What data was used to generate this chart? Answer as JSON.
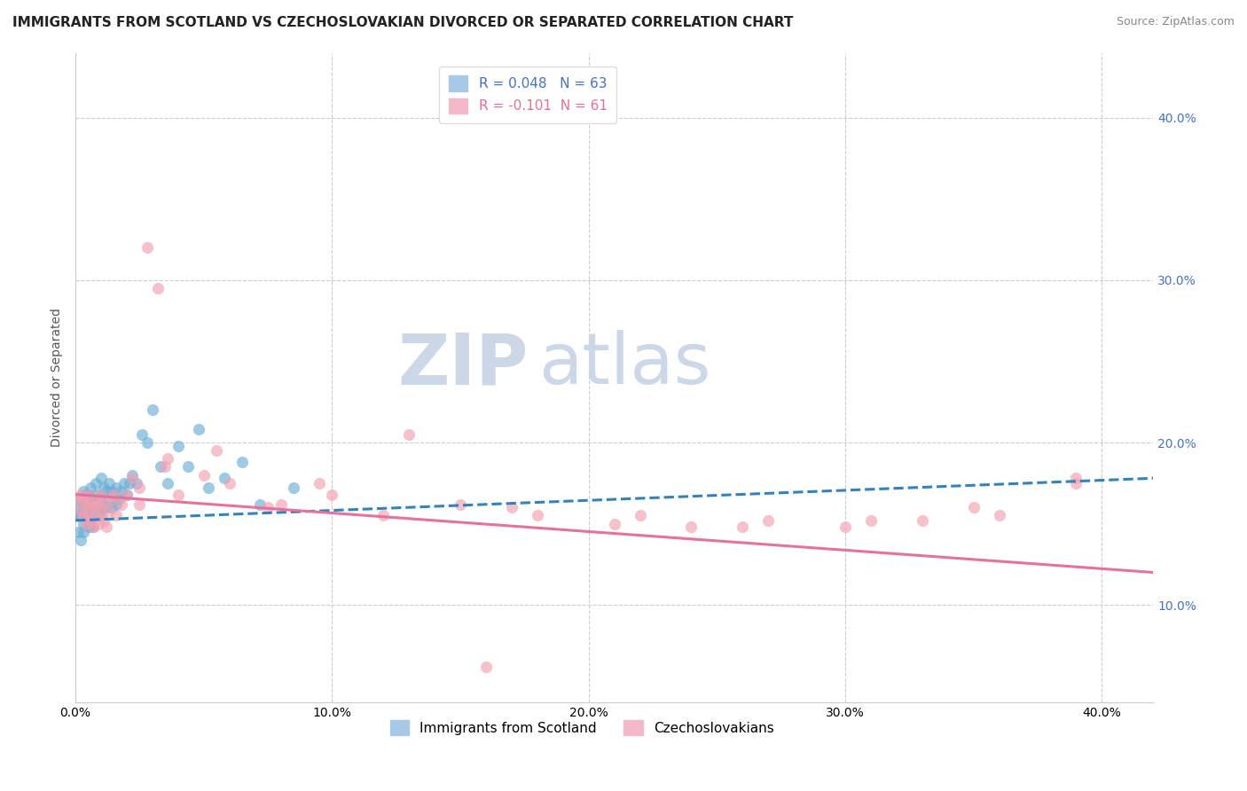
{
  "title": "IMMIGRANTS FROM SCOTLAND VS CZECHOSLOVAKIAN DIVORCED OR SEPARATED CORRELATION CHART",
  "source": "Source: ZipAtlas.com",
  "ylabel": "Divorced or Separated",
  "xlim": [
    0.0,
    0.42
  ],
  "ylim": [
    0.0,
    0.44
  ],
  "plot_ylim": [
    0.04,
    0.44
  ],
  "xtick_labels": [
    "0.0%",
    "10.0%",
    "20.0%",
    "30.0%",
    "40.0%"
  ],
  "xtick_vals": [
    0.0,
    0.1,
    0.2,
    0.3,
    0.4
  ],
  "ytick_right_labels": [
    "10.0%",
    "20.0%",
    "30.0%",
    "40.0%"
  ],
  "ytick_right_vals": [
    0.1,
    0.2,
    0.3,
    0.4
  ],
  "scatter_blue": {
    "x": [
      0.001,
      0.001,
      0.001,
      0.002,
      0.002,
      0.002,
      0.003,
      0.003,
      0.003,
      0.003,
      0.004,
      0.004,
      0.004,
      0.004,
      0.005,
      0.005,
      0.005,
      0.005,
      0.006,
      0.006,
      0.006,
      0.007,
      0.007,
      0.007,
      0.008,
      0.008,
      0.008,
      0.009,
      0.009,
      0.01,
      0.01,
      0.01,
      0.011,
      0.011,
      0.012,
      0.012,
      0.013,
      0.013,
      0.014,
      0.014,
      0.015,
      0.016,
      0.016,
      0.017,
      0.018,
      0.019,
      0.02,
      0.021,
      0.022,
      0.024,
      0.026,
      0.028,
      0.03,
      0.033,
      0.036,
      0.04,
      0.044,
      0.048,
      0.052,
      0.058,
      0.065,
      0.072,
      0.085
    ],
    "y": [
      0.145,
      0.155,
      0.16,
      0.14,
      0.155,
      0.165,
      0.15,
      0.16,
      0.17,
      0.145,
      0.155,
      0.165,
      0.155,
      0.168,
      0.148,
      0.158,
      0.168,
      0.155,
      0.152,
      0.162,
      0.172,
      0.155,
      0.165,
      0.148,
      0.158,
      0.168,
      0.175,
      0.155,
      0.165,
      0.158,
      0.168,
      0.178,
      0.162,
      0.172,
      0.16,
      0.17,
      0.165,
      0.175,
      0.16,
      0.17,
      0.168,
      0.162,
      0.172,
      0.165,
      0.17,
      0.175,
      0.168,
      0.175,
      0.18,
      0.175,
      0.205,
      0.2,
      0.22,
      0.185,
      0.175,
      0.198,
      0.185,
      0.208,
      0.172,
      0.178,
      0.188,
      0.162,
      0.172
    ],
    "color": "#6baed6",
    "alpha": 0.65,
    "size": 90
  },
  "scatter_pink": {
    "x": [
      0.001,
      0.002,
      0.002,
      0.003,
      0.003,
      0.004,
      0.004,
      0.005,
      0.005,
      0.006,
      0.006,
      0.007,
      0.007,
      0.008,
      0.008,
      0.009,
      0.009,
      0.01,
      0.01,
      0.011,
      0.011,
      0.012,
      0.013,
      0.014,
      0.015,
      0.016,
      0.018,
      0.02,
      0.022,
      0.025,
      0.028,
      0.032,
      0.036,
      0.04,
      0.05,
      0.06,
      0.08,
      0.1,
      0.12,
      0.15,
      0.18,
      0.21,
      0.24,
      0.27,
      0.3,
      0.33,
      0.36,
      0.39,
      0.025,
      0.035,
      0.055,
      0.075,
      0.095,
      0.13,
      0.17,
      0.22,
      0.26,
      0.31,
      0.35,
      0.39,
      0.16
    ],
    "y": [
      0.165,
      0.158,
      0.168,
      0.155,
      0.165,
      0.15,
      0.162,
      0.155,
      0.168,
      0.152,
      0.162,
      0.148,
      0.16,
      0.155,
      0.165,
      0.15,
      0.162,
      0.155,
      0.168,
      0.152,
      0.162,
      0.148,
      0.158,
      0.165,
      0.168,
      0.155,
      0.162,
      0.168,
      0.178,
      0.162,
      0.32,
      0.295,
      0.19,
      0.168,
      0.18,
      0.175,
      0.162,
      0.168,
      0.155,
      0.162,
      0.155,
      0.15,
      0.148,
      0.152,
      0.148,
      0.152,
      0.155,
      0.175,
      0.172,
      0.185,
      0.195,
      0.16,
      0.175,
      0.205,
      0.16,
      0.155,
      0.148,
      0.152,
      0.16,
      0.178,
      0.062
    ],
    "color": "#f4a0b0",
    "alpha": 0.65,
    "size": 90
  },
  "trendline_blue": {
    "x": [
      0.0,
      0.42
    ],
    "y": [
      0.152,
      0.178
    ],
    "color": "#3182bd",
    "linewidth": 2.2,
    "linestyle": "--"
  },
  "trendline_pink": {
    "x": [
      0.0,
      0.42
    ],
    "y": [
      0.168,
      0.12
    ],
    "color": "#e8709a",
    "linewidth": 2.2,
    "linestyle": "-"
  },
  "watermark_zip": "ZIP",
  "watermark_atlas": "atlas",
  "watermark_color": "#ccd8e8",
  "background_color": "#ffffff",
  "grid_color": "#cccccc",
  "title_fontsize": 11,
  "axis_fontsize": 10,
  "source_fontsize": 9,
  "legend_top_labels": [
    "R = 0.048   N = 63",
    "R = -0.101  N = 61"
  ],
  "legend_bot_labels": [
    "Immigrants from Scotland",
    "Czechoslovakians"
  ],
  "legend_blue_color": "#a8c8e8",
  "legend_pink_color": "#f4b8c8",
  "text_blue": "#4472c4",
  "text_pink": "#e87090"
}
